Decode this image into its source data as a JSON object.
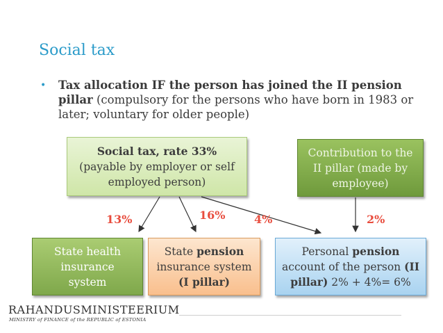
{
  "title": "Social tax",
  "bullet": {
    "bold": "Tax allocation IF the person has joined the II pension pillar",
    "rest": " (compulsory for the persons who have born in 1983 or later; voluntary for older people)"
  },
  "boxes": {
    "social_tax": {
      "line1": "Social tax, rate 33%",
      "line2": "(payable by employer or self employed person)"
    },
    "contribution": "Contribution to the II pillar (made by employee)",
    "health": "State health insurance system",
    "state_pension": {
      "pre": "State ",
      "bold": "pension",
      "mid": " insurance system",
      "bold2": "(I pillar)"
    },
    "personal_pension": {
      "pre": "Personal ",
      "bold": "pension",
      "mid": " account of the person ",
      "bold2": "(II pillar)",
      "post": " 2% + 4%= 6%"
    }
  },
  "percentages": {
    "p13": "13%",
    "p16": "16%",
    "p4": "4%",
    "p2": "2%"
  },
  "logo": {
    "name": "RAHANDUSMINISTEERIUM",
    "subtitle": "MINISTRY of FINANCE of the REPUBLIC of ESTONIA"
  },
  "colors": {
    "title": "#2b9bc9",
    "percent": "#e84c3d"
  }
}
